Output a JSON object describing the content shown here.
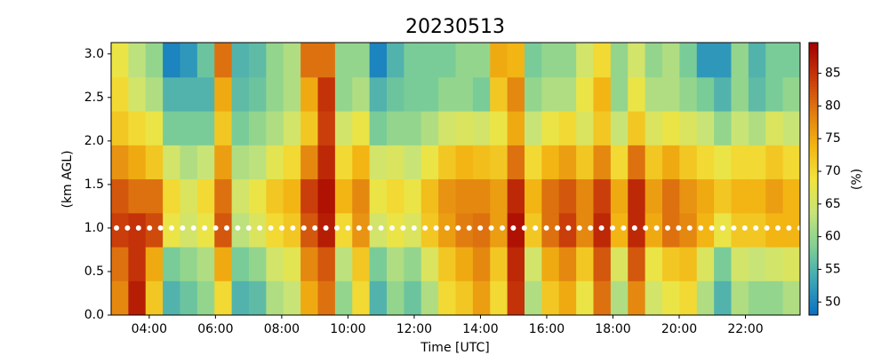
{
  "chart_data": {
    "type": "heatmap",
    "title": "20230513",
    "xlabel": "Time [UTC]",
    "ylabel": "(km AGL)",
    "xlim": [
      2.85,
      23.65
    ],
    "ylim": [
      0,
      3.13
    ],
    "xticks": [
      {
        "value": 4,
        "label": "04:00"
      },
      {
        "value": 6,
        "label": "06:00"
      },
      {
        "value": 8,
        "label": "08:00"
      },
      {
        "value": 10,
        "label": "10:00"
      },
      {
        "value": 12,
        "label": "12:00"
      },
      {
        "value": 14,
        "label": "14:00"
      },
      {
        "value": 16,
        "label": "16:00"
      },
      {
        "value": 18,
        "label": "18:00"
      },
      {
        "value": 20,
        "label": "20:00"
      },
      {
        "value": 22,
        "label": "22:00"
      }
    ],
    "yticks": [
      {
        "value": 0,
        "label": "0.0"
      },
      {
        "value": 0.5,
        "label": "0.5"
      },
      {
        "value": 1,
        "label": "1.0"
      },
      {
        "value": 1.5,
        "label": "1.5"
      },
      {
        "value": 2,
        "label": "2.0"
      },
      {
        "value": 2.5,
        "label": "2.5"
      },
      {
        "value": 3,
        "label": "3.0"
      }
    ],
    "x": [
      3.11,
      3.63,
      4.15,
      4.67,
      5.19,
      5.71,
      6.23,
      6.75,
      7.27,
      7.79,
      8.31,
      8.83,
      9.35,
      9.87,
      10.39,
      10.91,
      11.43,
      11.95,
      12.47,
      12.99,
      13.51,
      14.03,
      14.55,
      15.07,
      15.59,
      16.11,
      16.63,
      17.15,
      17.67,
      18.19,
      18.71,
      19.23,
      19.75,
      20.27,
      20.79,
      21.31,
      21.83,
      22.35,
      22.87,
      23.39
    ],
    "y": [
      0.2,
      0.59,
      0.98,
      1.37,
      1.76,
      2.15,
      2.54,
      2.93
    ],
    "values": [
      [
        78,
        80,
        84,
        82,
        77,
        72,
        70,
        68
      ],
      [
        87,
        85,
        85,
        80,
        75,
        70,
        65,
        63
      ],
      [
        72,
        75,
        83,
        80,
        72,
        68,
        62,
        60
      ],
      [
        55,
        58,
        68,
        70,
        65,
        58,
        55,
        50
      ],
      [
        57,
        60,
        65,
        66,
        62,
        58,
        55,
        52
      ],
      [
        60,
        62,
        68,
        70,
        64,
        58,
        55,
        57
      ],
      [
        70,
        75,
        82,
        80,
        76,
        72,
        75,
        80
      ],
      [
        55,
        58,
        63,
        65,
        62,
        58,
        56,
        55
      ],
      [
        56,
        60,
        66,
        68,
        63,
        60,
        57,
        56
      ],
      [
        62,
        65,
        70,
        72,
        67,
        62,
        60,
        60
      ],
      [
        64,
        67,
        72,
        74,
        70,
        65,
        62,
        62
      ],
      [
        75,
        78,
        82,
        84,
        78,
        72,
        75,
        80
      ],
      [
        80,
        82,
        87,
        88,
        86,
        84,
        85,
        80
      ],
      [
        60,
        63,
        70,
        74,
        70,
        65,
        60,
        60
      ],
      [
        70,
        72,
        77,
        78,
        74,
        68,
        62,
        60
      ],
      [
        55,
        58,
        65,
        68,
        65,
        58,
        55,
        50
      ],
      [
        60,
        62,
        68,
        70,
        66,
        60,
        57,
        55
      ],
      [
        57,
        60,
        66,
        68,
        64,
        60,
        58,
        58
      ],
      [
        62,
        66,
        72,
        73,
        68,
        62,
        58,
        58
      ],
      [
        70,
        72,
        76,
        77,
        72,
        65,
        60,
        58
      ],
      [
        72,
        75,
        79,
        78,
        74,
        66,
        60,
        60
      ],
      [
        76,
        78,
        80,
        78,
        73,
        65,
        58,
        60
      ],
      [
        70,
        72,
        76,
        76,
        72,
        68,
        72,
        75
      ],
      [
        85,
        86,
        88,
        86,
        80,
        75,
        78,
        74
      ],
      [
        62,
        65,
        72,
        74,
        70,
        64,
        60,
        58
      ],
      [
        72,
        75,
        80,
        80,
        74,
        68,
        62,
        60
      ],
      [
        75,
        78,
        84,
        82,
        76,
        70,
        62,
        60
      ],
      [
        68,
        72,
        78,
        78,
        72,
        66,
        68,
        65
      ],
      [
        80,
        82,
        86,
        84,
        78,
        72,
        74,
        70
      ],
      [
        62,
        66,
        74,
        75,
        70,
        64,
        60,
        60
      ],
      [
        78,
        82,
        86,
        86,
        80,
        72,
        68,
        65
      ],
      [
        65,
        68,
        75,
        76,
        72,
        66,
        62,
        60
      ],
      [
        68,
        72,
        80,
        80,
        75,
        68,
        62,
        62
      ],
      [
        70,
        73,
        78,
        77,
        72,
        66,
        60,
        58
      ],
      [
        62,
        66,
        74,
        75,
        70,
        64,
        58,
        52
      ],
      [
        55,
        58,
        68,
        72,
        68,
        60,
        55,
        52
      ],
      [
        62,
        65,
        72,
        74,
        70,
        64,
        60,
        60
      ],
      [
        60,
        64,
        72,
        74,
        70,
        62,
        56,
        55
      ],
      [
        60,
        65,
        74,
        76,
        72,
        66,
        58,
        58
      ],
      [
        62,
        66,
        74,
        74,
        70,
        64,
        60,
        58
      ]
    ],
    "hline": 1.0,
    "colorbar": {
      "label": "(%)",
      "lim": [
        48,
        89.7
      ],
      "ticks": [
        50,
        55,
        60,
        65,
        70,
        75,
        80,
        85
      ],
      "colors": [
        "#0a6fc2",
        "#3aa5b8",
        "#7fcf95",
        "#c6e47a",
        "#f2e43c",
        "#f2b412",
        "#e07a10",
        "#c8380a",
        "#a30000"
      ]
    }
  }
}
